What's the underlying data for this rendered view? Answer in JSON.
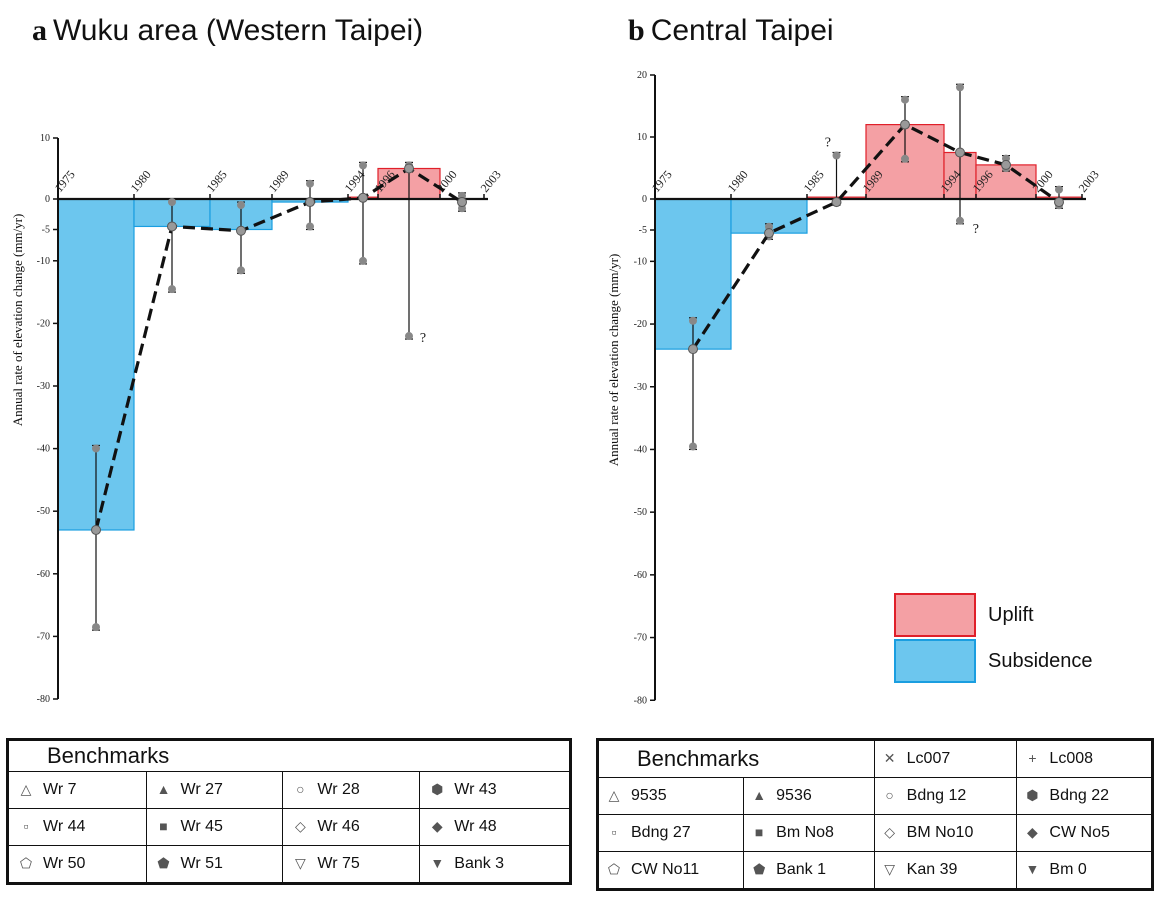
{
  "panels": {
    "a": {
      "letter": "a",
      "title": "Wuku area (Western Taipei)"
    },
    "b": {
      "letter": "b",
      "title": "Central Taipei"
    }
  },
  "legend": {
    "uplift": {
      "label": "Uplift",
      "fill": "#f4a0a4",
      "stroke": "#e0202a"
    },
    "subsidence": {
      "label": "Subsidence",
      "fill": "#6cc6ee",
      "stroke": "#1a9ee0"
    }
  },
  "chart_data": [
    {
      "type": "bar",
      "panel": "a",
      "ylabel": "Annual rate of elevation change (mm/yr)",
      "ylim": [
        -80,
        10
      ],
      "yticks": [
        10,
        0,
        -5,
        -10,
        -20,
        -30,
        -40,
        -50,
        -60,
        -70,
        -80
      ],
      "year_labels": [
        "1975",
        "1980",
        "1985",
        "1989",
        "1994",
        "1996",
        "2000",
        "2003"
      ],
      "bars": [
        {
          "from": 1975,
          "to": 1980,
          "value": -53,
          "kind": "subsidence"
        },
        {
          "from": 1980,
          "to": 1985,
          "value": -4.5,
          "kind": "subsidence"
        },
        {
          "from": 1985,
          "to": 1989,
          "value": -5,
          "kind": "subsidence"
        },
        {
          "from": 1989,
          "to": 1994,
          "value": -0.5,
          "kind": "subsidence"
        },
        {
          "from": 1994,
          "to": 1996,
          "value": 0.3,
          "kind": "uplift"
        },
        {
          "from": 1996,
          "to": 2000,
          "value": 5,
          "kind": "uplift"
        }
      ],
      "trend": [
        {
          "year": 1977.5,
          "value": -53
        },
        {
          "year": 1982.5,
          "value": -4.5
        },
        {
          "year": 1987,
          "value": -5.2
        },
        {
          "year": 1991.5,
          "value": -0.5
        },
        {
          "year": 1995,
          "value": 0.2
        },
        {
          "year": 1998,
          "value": 5
        },
        {
          "year": 2001.5,
          "value": -0.5
        }
      ],
      "errorbars": [
        {
          "year": 1977.5,
          "low": -69,
          "high": -39.5
        },
        {
          "year": 1982.5,
          "low": -15,
          "high": 0
        },
        {
          "year": 1987,
          "low": -12,
          "high": -0.5
        },
        {
          "year": 1991.5,
          "low": -5,
          "high": 3
        },
        {
          "year": 1995,
          "low": -10.5,
          "high": 6
        },
        {
          "year": 1998,
          "low": -22.5,
          "high": 6
        },
        {
          "year": 2001.5,
          "low": -2,
          "high": 1
        }
      ],
      "question_marks": [
        {
          "year": 1998.7,
          "value": -23
        }
      ]
    },
    {
      "type": "bar",
      "panel": "b",
      "ylabel": "Annual rate of elevation change (mm/yr)",
      "ylim": [
        -80,
        20
      ],
      "yticks": [
        20,
        10,
        0,
        -5,
        -10,
        -20,
        -30,
        -40,
        -50,
        -60,
        -70,
        -80
      ],
      "year_labels": [
        "1975",
        "1980",
        "1985",
        "1989",
        "1994",
        "1996",
        "2000",
        "2003"
      ],
      "bars": [
        {
          "from": 1975,
          "to": 1980,
          "value": -24,
          "kind": "subsidence"
        },
        {
          "from": 1980,
          "to": 1985,
          "value": -5.5,
          "kind": "subsidence"
        },
        {
          "from": 1985,
          "to": 1989,
          "value": 0.3,
          "kind": "uplift"
        },
        {
          "from": 1989,
          "to": 1994,
          "value": 12,
          "kind": "uplift"
        },
        {
          "from": 1994,
          "to": 1996,
          "value": 7.5,
          "kind": "uplift"
        },
        {
          "from": 1996,
          "to": 2000,
          "value": 5.5,
          "kind": "uplift"
        },
        {
          "from": 2000,
          "to": 2003,
          "value": 0.3,
          "kind": "uplift"
        }
      ],
      "trend": [
        {
          "year": 1977.5,
          "value": -24
        },
        {
          "year": 1982.5,
          "value": -5.5
        },
        {
          "year": 1987,
          "value": -0.5
        },
        {
          "year": 1991.5,
          "value": 12
        },
        {
          "year": 1995,
          "value": 7.5
        },
        {
          "year": 1998,
          "value": 5.5
        },
        {
          "year": 2001.5,
          "value": -0.5
        }
      ],
      "errorbars": [
        {
          "year": 1977.5,
          "low": -40,
          "high": -19
        },
        {
          "year": 1982.5,
          "low": -6.5,
          "high": -4
        },
        {
          "year": 1987,
          "low": -1,
          "high": 7.5
        },
        {
          "year": 1991.5,
          "low": 6,
          "high": 16.5
        },
        {
          "year": 1995,
          "low": -4,
          "high": 18.5
        },
        {
          "year": 1998,
          "low": 4.5,
          "high": 7
        },
        {
          "year": 2001.5,
          "low": -1.5,
          "high": 2
        }
      ],
      "question_marks": [
        {
          "year": 1986.2,
          "value": 8.5
        },
        {
          "year": 1995.8,
          "value": -5.5
        }
      ]
    }
  ],
  "tables": {
    "a": {
      "header": "Benchmarks",
      "rows": [
        [
          {
            "icon": "triangle-open-icon",
            "label": "Wr 7"
          },
          {
            "icon": "triangle-filled-icon",
            "label": "Wr  27"
          },
          {
            "icon": "circle-open-icon",
            "label": "Wr  28"
          },
          {
            "icon": "hexagon-filled-icon",
            "label": "Wr  43"
          }
        ],
        [
          {
            "icon": "square-open-icon",
            "label": "Wr  44"
          },
          {
            "icon": "square-filled-icon",
            "label": "Wr  45"
          },
          {
            "icon": "diamond-open-icon",
            "label": "Wr  46"
          },
          {
            "icon": "diamond-filled-icon",
            "label": "Wr  48"
          }
        ],
        [
          {
            "icon": "pentagon-open-icon",
            "label": "Wr  50"
          },
          {
            "icon": "pentagon-filled-icon",
            "label": "Wr  51"
          },
          {
            "icon": "triangle-down-open-icon",
            "label": "Wr  75"
          },
          {
            "icon": "triangle-down-filled-icon",
            "label": "Bank 3"
          }
        ]
      ]
    },
    "b": {
      "header": "Benchmarks",
      "header_extras": [
        {
          "icon": "cross-x-icon",
          "label": "Lc007"
        },
        {
          "icon": "plus-icon",
          "label": "Lc008"
        }
      ],
      "rows": [
        [
          {
            "icon": "triangle-open-icon",
            "label": "9535"
          },
          {
            "icon": "triangle-filled-icon",
            "label": "9536"
          },
          {
            "icon": "circle-open-icon",
            "label": "Bdng 12"
          },
          {
            "icon": "hexagon-filled-icon",
            "label": "Bdng 22"
          }
        ],
        [
          {
            "icon": "square-open-icon",
            "label": "Bdng 27"
          },
          {
            "icon": "square-filled-icon",
            "label": "Bm No8"
          },
          {
            "icon": "diamond-open-icon",
            "label": "BM No10"
          },
          {
            "icon": "diamond-filled-icon",
            "label": "CW No5"
          }
        ],
        [
          {
            "icon": "pentagon-open-icon",
            "label": "CW No11"
          },
          {
            "icon": "pentagon-filled-icon",
            "label": "Bank 1"
          },
          {
            "icon": "triangle-down-open-icon",
            "label": "Kan 39"
          },
          {
            "icon": "triangle-down-filled-icon",
            "label": "Bm 0"
          }
        ]
      ]
    }
  }
}
